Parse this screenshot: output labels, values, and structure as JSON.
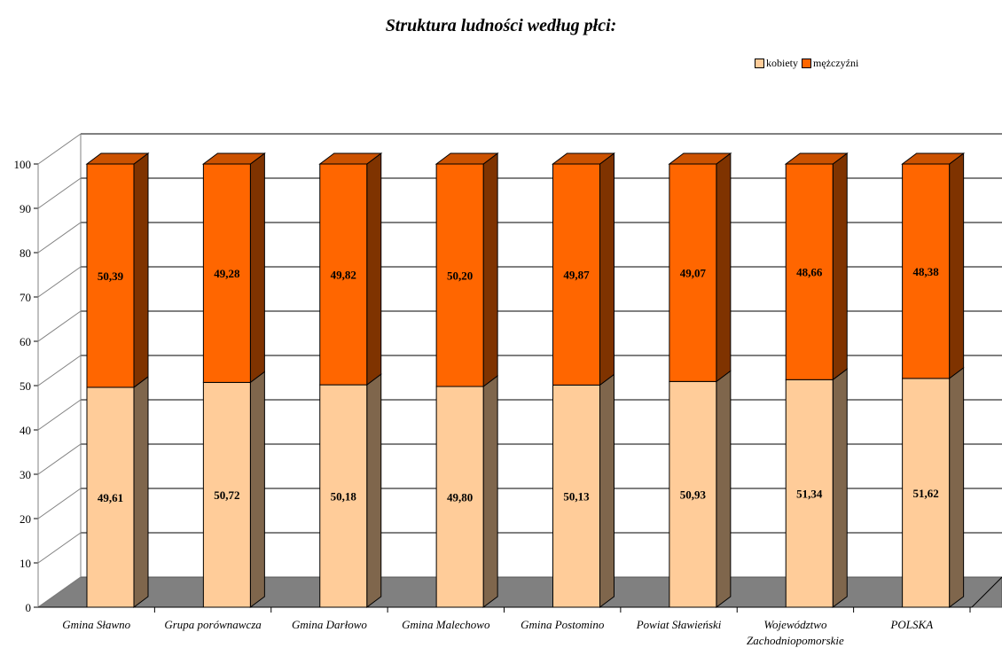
{
  "chart_data": {
    "type": "bar",
    "stacked": true,
    "three_d": true,
    "title": "Struktura ludności według płci:",
    "categories": [
      "Gmina Sławno",
      "Grupa porównawcza",
      "Gmina Darłowo",
      "Gmina Malechowo",
      "Gmina Postomino",
      "Powiat Sławieński",
      "Województwo Zachodniopomorskie",
      "POLSKA"
    ],
    "series": [
      {
        "name": "kobiety",
        "values": [
          49.61,
          50.72,
          50.18,
          49.8,
          50.13,
          50.93,
          51.34,
          51.62
        ],
        "labels": [
          "49,61",
          "50,72",
          "50,18",
          "49,80",
          "50,13",
          "50,93",
          "51,34",
          "51,62"
        ]
      },
      {
        "name": "mężczyźni",
        "values": [
          50.39,
          49.28,
          49.82,
          50.2,
          49.87,
          49.07,
          48.66,
          48.38
        ],
        "labels": [
          "50,39",
          "49,28",
          "49,82",
          "50,20",
          "49,87",
          "49,07",
          "48,66",
          "48,38"
        ]
      }
    ],
    "ylim": [
      0,
      100
    ],
    "yticks": [
      "0",
      "10",
      "20",
      "30",
      "40",
      "50",
      "60",
      "70",
      "80",
      "90",
      "100"
    ],
    "grid": true,
    "legend_position": "top-right",
    "colors": {
      "kobiety": "#FFCC99",
      "kobiety_side": "#7F664C",
      "kobiety_top": "#FFCC99",
      "mezczyzni": "#FF6600",
      "mezczyzni_side": "#7F3300",
      "mezczyzni_top": "#CC5200",
      "floor": "#808080",
      "grid": "#000000"
    }
  }
}
